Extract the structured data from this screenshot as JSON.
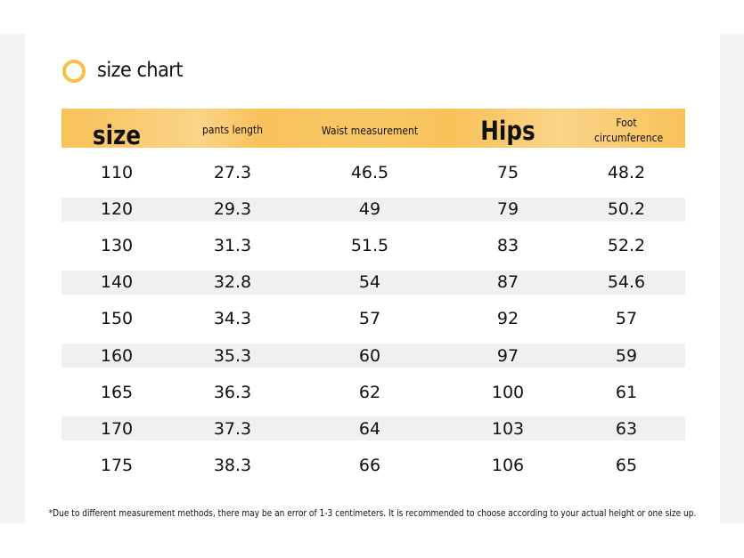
{
  "title": "size chart",
  "table": {
    "header": [
      "size",
      "pants length",
      "Waist measurement",
      "Hips",
      "Foot circumference"
    ],
    "rows": [
      [
        "110",
        "27.3",
        "46.5",
        "75",
        "48.2"
      ],
      [
        "120",
        "29.3",
        "49",
        "79",
        "50.2"
      ],
      [
        "130",
        "31.3",
        "51.5",
        "83",
        "52.2"
      ],
      [
        "140",
        "32.8",
        "54",
        "87",
        "54.6"
      ],
      [
        "150",
        "34.3",
        "57",
        "92",
        "57"
      ],
      [
        "160",
        "35.3",
        "60",
        "97",
        "59"
      ],
      [
        "165",
        "36.3",
        "62",
        "100",
        "61"
      ],
      [
        "170",
        "37.3",
        "64",
        "103",
        "63"
      ],
      [
        "175",
        "38.3",
        "66",
        "106",
        "65"
      ]
    ]
  },
  "footnote": "*Due to different measurement methods, there may be an error of 1-3 centimeters. It is recommended to choose according to your actual height or one size up."
}
